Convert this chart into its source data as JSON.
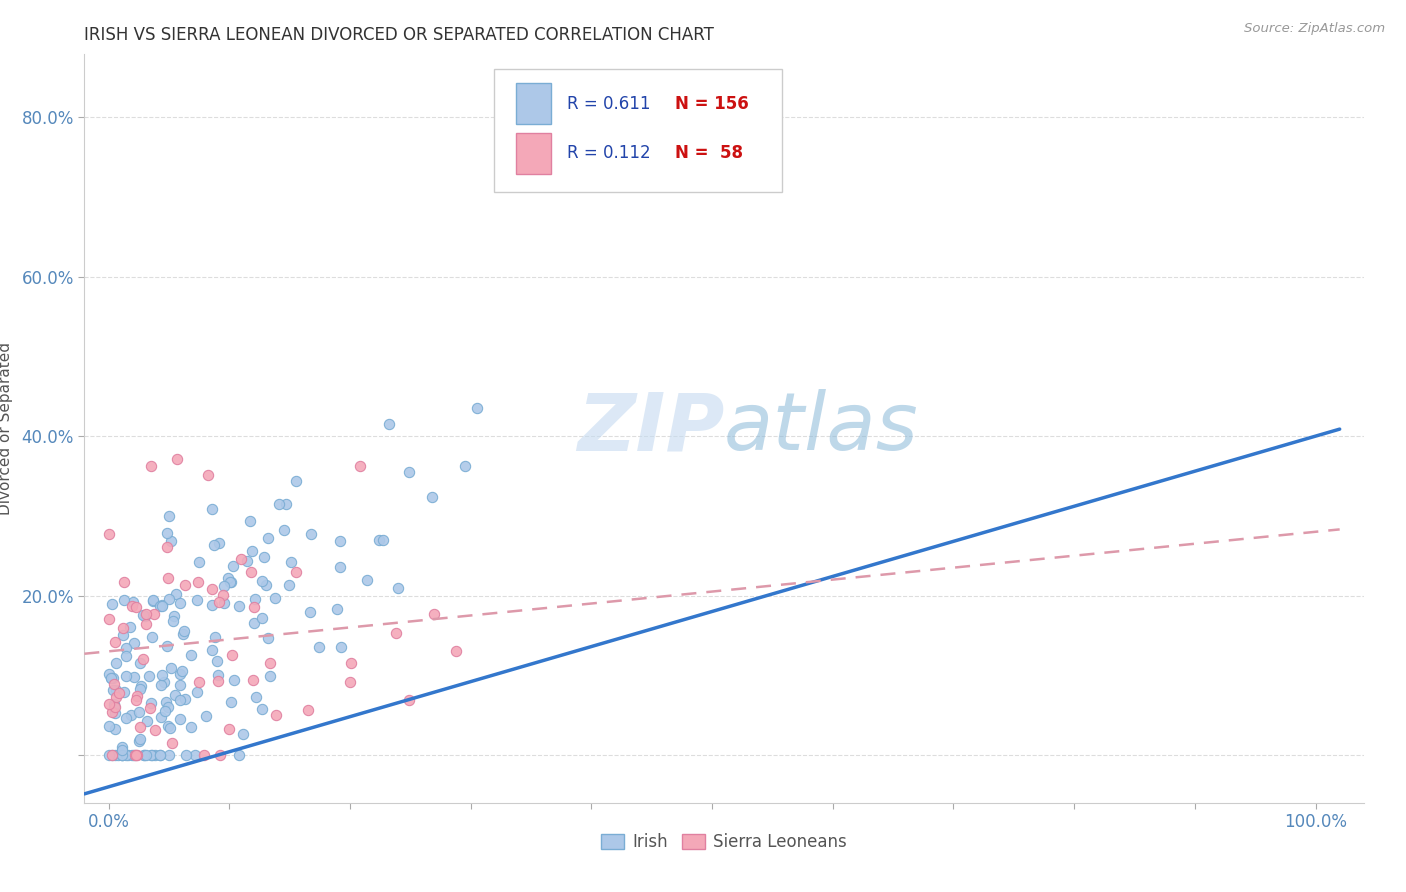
{
  "title": "IRISH VS SIERRA LEONEAN DIVORCED OR SEPARATED CORRELATION CHART",
  "source": "Source: ZipAtlas.com",
  "ylabel": "Divorced or Separated",
  "irish_R": 0.611,
  "irish_N": 156,
  "sierra_R": 0.112,
  "sierra_N": 58,
  "irish_color": "#adc8e8",
  "irish_edge_color": "#7aadd4",
  "sierra_color": "#f4a8b8",
  "sierra_edge_color": "#e080a0",
  "irish_line_color": "#3377cc",
  "sierra_line_color": "#dd99aa",
  "legend_r_color": "#2244aa",
  "legend_n_color": "#cc1111",
  "watermark_color": "#d8e8f4",
  "background_color": "#ffffff",
  "grid_color": "#dddddd",
  "tick_color": "#5588bb",
  "ylabel_color": "#555555",
  "title_color": "#333333",
  "source_color": "#999999"
}
